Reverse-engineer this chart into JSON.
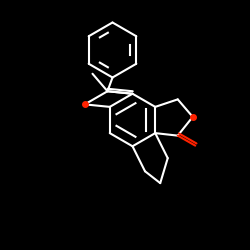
{
  "bg_color": "#000000",
  "bond_color": "#ffffff",
  "o_color": "#ff2200",
  "lw": 1.5,
  "figsize": [
    2.5,
    2.5
  ],
  "dpi": 100,
  "xlim": [
    0,
    10
  ],
  "ylim": [
    0,
    10
  ]
}
